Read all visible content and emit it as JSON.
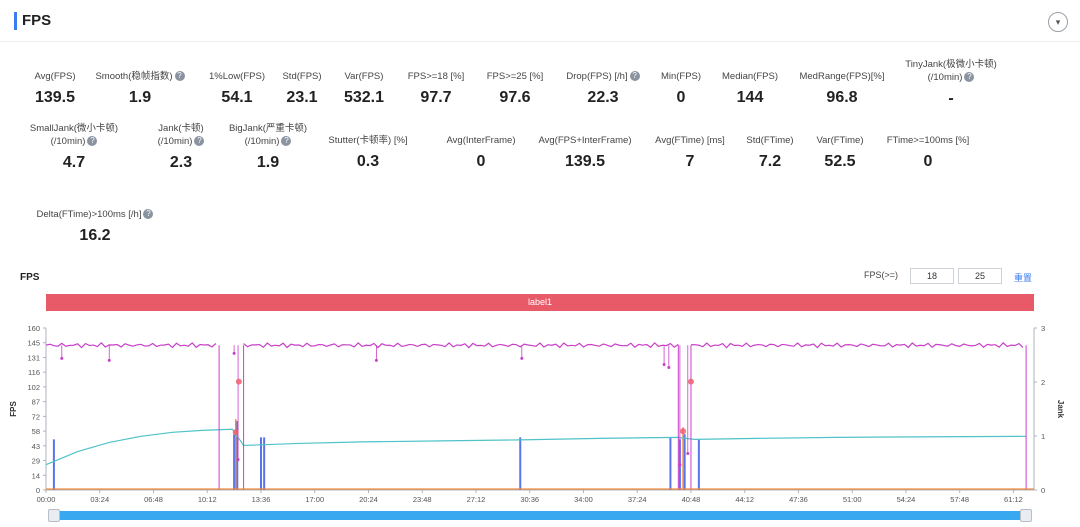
{
  "header": {
    "title": "FPS"
  },
  "metrics": [
    {
      "id": "avg-fps",
      "label": "Avg(FPS)",
      "label2": "",
      "help": false,
      "value": "139.5"
    },
    {
      "id": "smooth",
      "label": "Smooth(稳帧指数)",
      "label2": "",
      "help": true,
      "value": "1.9"
    },
    {
      "id": "low1",
      "label": "1%Low(FPS)",
      "label2": "",
      "help": false,
      "value": "54.1"
    },
    {
      "id": "std-fps",
      "label": "Std(FPS)",
      "label2": "",
      "help": false,
      "value": "23.1"
    },
    {
      "id": "var-fps",
      "label": "Var(FPS)",
      "label2": "",
      "help": false,
      "value": "532.1"
    },
    {
      "id": "fps18",
      "label": "FPS>=18 [%]",
      "label2": "",
      "help": false,
      "value": "97.7"
    },
    {
      "id": "fps25",
      "label": "FPS>=25 [%]",
      "label2": "",
      "help": false,
      "value": "97.6"
    },
    {
      "id": "drop",
      "label": "Drop(FPS) [/h]",
      "label2": "",
      "help": true,
      "value": "22.3"
    },
    {
      "id": "min-fps",
      "label": "Min(FPS)",
      "label2": "",
      "help": false,
      "value": "0"
    },
    {
      "id": "median",
      "label": "Median(FPS)",
      "label2": "",
      "help": false,
      "value": "144"
    },
    {
      "id": "medrange",
      "label": "MedRange(FPS)[%]",
      "label2": "",
      "help": false,
      "value": "96.8"
    },
    {
      "id": "tinyjank",
      "label": "TinyJank(极微小卡顿)",
      "label2": "(/10min)",
      "help": true,
      "value": "-"
    },
    {
      "id": "smalljank",
      "label": "SmallJank(微小卡顿)",
      "label2": "(/10min)",
      "help": true,
      "value": "4.7"
    },
    {
      "id": "jank",
      "label": "Jank(卡顿)",
      "label2": "(/10min)",
      "help": true,
      "value": "2.3"
    },
    {
      "id": "bigjank",
      "label": "BigJank(严重卡顿)",
      "label2": "(/10min)",
      "help": true,
      "value": "1.9"
    },
    {
      "id": "stutter",
      "label": "Stutter(卡顿率) [%]",
      "label2": "",
      "help": false,
      "value": "0.3"
    },
    {
      "id": "interframe",
      "label": "Avg(InterFrame)",
      "label2": "",
      "help": false,
      "value": "0"
    },
    {
      "id": "fps-interframe",
      "label": "Avg(FPS+InterFrame)",
      "label2": "",
      "help": false,
      "value": "139.5"
    },
    {
      "id": "avg-ftime",
      "label": "Avg(FTime) [ms]",
      "label2": "",
      "help": false,
      "value": "7"
    },
    {
      "id": "std-ftime",
      "label": "Std(FTime)",
      "label2": "",
      "help": false,
      "value": "7.2"
    },
    {
      "id": "var-ftime",
      "label": "Var(FTime)",
      "label2": "",
      "help": false,
      "value": "52.5"
    },
    {
      "id": "ftime100",
      "label": "FTime>=100ms [%]",
      "label2": "",
      "help": false,
      "value": "0"
    },
    {
      "id": "delta-ftime",
      "label": "Delta(FTime)>100ms [/h]",
      "label2": "",
      "help": true,
      "value": "16.2"
    }
  ],
  "fps_panel": {
    "title": "FPS",
    "filter_label": "FPS(>=)",
    "filter_value_1": "18",
    "filter_value_2": "25",
    "reset_label": "重置",
    "band_label": "label1"
  },
  "chart_data": {
    "type": "line",
    "ylabel": "FPS",
    "y2label": "Jank",
    "ylim": [
      0,
      160
    ],
    "y2lim": [
      0,
      3
    ],
    "yticks": [
      "160",
      "145",
      "131",
      "116",
      "102",
      "87",
      "72",
      "58",
      "43",
      "29",
      "14",
      "0"
    ],
    "y2ticks": [
      "3",
      "2",
      "1",
      "0"
    ],
    "xticks": [
      "00:00",
      "03:24",
      "06:48",
      "10:12",
      "13:36",
      "17:00",
      "20:24",
      "23:48",
      "27:12",
      "30:36",
      "34:00",
      "37:24",
      "40:48",
      "44:12",
      "47:36",
      "51:00",
      "54:24",
      "57:48",
      "61:12"
    ],
    "colors": {
      "fps": "#c83fc8",
      "jank": "#e85a68",
      "smooth": "#4fc3c8",
      "bigjank": "#3b5ce8",
      "orange": "#f08a3c"
    },
    "series": [
      {
        "name": "FPS",
        "segments": [
          [
            0,
            10.95,
            143
          ],
          [
            12.5,
            40.0,
            143
          ],
          [
            40.8,
            62.0,
            143
          ]
        ],
        "drops": [
          [
            1.0,
            130
          ],
          [
            4.0,
            128
          ],
          [
            11.9,
            135
          ],
          [
            12.15,
            30
          ],
          [
            20.9,
            128
          ],
          [
            30.1,
            130
          ],
          [
            39.1,
            124
          ],
          [
            39.4,
            121
          ],
          [
            40.1,
            25
          ],
          [
            40.6,
            36
          ]
        ]
      },
      {
        "name": "Smooth",
        "points": [
          [
            0,
            25
          ],
          [
            2,
            38
          ],
          [
            4,
            47
          ],
          [
            6,
            53
          ],
          [
            8,
            57
          ],
          [
            10,
            59
          ],
          [
            11.8,
            60
          ],
          [
            12.5,
            44
          ],
          [
            16,
            46
          ],
          [
            20,
            47.5
          ],
          [
            25,
            48.5
          ],
          [
            30,
            49.5
          ],
          [
            35,
            51
          ],
          [
            40,
            52
          ],
          [
            41,
            50
          ],
          [
            45,
            51
          ],
          [
            50,
            52
          ],
          [
            55,
            52.5
          ],
          [
            62,
            53
          ]
        ]
      },
      {
        "name": "BigJank",
        "bars": [
          [
            0.5,
            50
          ],
          [
            11.9,
            55
          ],
          [
            12.1,
            68
          ],
          [
            13.6,
            52
          ],
          [
            13.8,
            52
          ],
          [
            30.0,
            52
          ],
          [
            39.5,
            52
          ],
          [
            40.1,
            50
          ],
          [
            40.4,
            55
          ],
          [
            41.3,
            50
          ]
        ]
      }
    ]
  }
}
